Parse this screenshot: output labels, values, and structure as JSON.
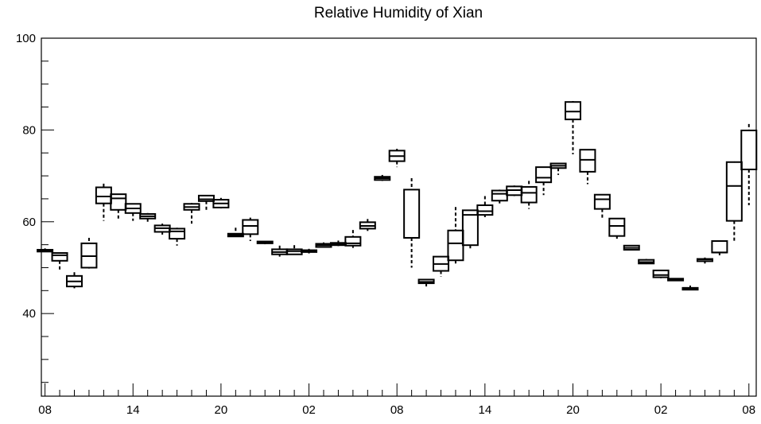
{
  "chart_data": {
    "type": "boxplot",
    "title": "Relative Humidity of Xian",
    "xlabel": "",
    "ylabel": "",
    "ylim": [
      22,
      100
    ],
    "xlim": [
      -0.25,
      48.5
    ],
    "y_ticks": [
      40,
      60,
      80,
      100
    ],
    "x_ticks": [
      {
        "x": 0,
        "label": "08"
      },
      {
        "x": 6,
        "label": "14"
      },
      {
        "x": 12,
        "label": "20"
      },
      {
        "x": 18,
        "label": "02"
      },
      {
        "x": 24,
        "label": "08"
      },
      {
        "x": 30,
        "label": "14"
      },
      {
        "x": 36,
        "label": "20"
      },
      {
        "x": 42,
        "label": "02"
      },
      {
        "x": 48,
        "label": "08"
      }
    ],
    "grid": false,
    "series": [
      {
        "values": [
          {
            "x": 0,
            "min": 53.4,
            "q1": 53.5,
            "median": 53.7,
            "q3": 53.9,
            "max": 54.2
          },
          {
            "x": 1,
            "min": 49.6,
            "q1": 51.5,
            "median": 52.7,
            "q3": 53.2,
            "max": 53.3
          },
          {
            "x": 2,
            "min": 45.5,
            "q1": 45.9,
            "median": 47.0,
            "q3": 48.2,
            "max": 49.0
          },
          {
            "x": 3,
            "min": 49.8,
            "q1": 50.0,
            "median": 52.5,
            "q3": 55.3,
            "max": 56.5
          },
          {
            "x": 4,
            "min": 60.2,
            "q1": 64.0,
            "median": 65.5,
            "q3": 67.5,
            "max": 68.3
          },
          {
            "x": 5,
            "min": 60.7,
            "q1": 62.6,
            "median": 65.1,
            "q3": 66.0,
            "max": 66.1
          },
          {
            "x": 6,
            "min": 60.2,
            "q1": 61.9,
            "median": 62.9,
            "q3": 63.9,
            "max": 64.0
          },
          {
            "x": 7,
            "min": 59.8,
            "q1": 60.7,
            "median": 61.2,
            "q3": 61.7,
            "max": 61.9
          },
          {
            "x": 8,
            "min": 57.2,
            "q1": 57.8,
            "median": 58.6,
            "q3": 59.2,
            "max": 59.6
          },
          {
            "x": 9,
            "min": 54.8,
            "q1": 56.3,
            "median": 57.9,
            "q3": 58.5,
            "max": 58.7
          },
          {
            "x": 10,
            "min": 59.6,
            "q1": 62.6,
            "median": 63.2,
            "q3": 63.9,
            "max": 64.1
          },
          {
            "x": 11,
            "min": 62.5,
            "q1": 64.5,
            "median": 64.9,
            "q3": 65.7,
            "max": 65.8
          },
          {
            "x": 12,
            "min": 62.9,
            "q1": 63.1,
            "median": 64.0,
            "q3": 64.8,
            "max": 65.2
          },
          {
            "x": 13,
            "min": 56.7,
            "q1": 56.8,
            "median": 57.1,
            "q3": 57.4,
            "max": 58.7
          },
          {
            "x": 14,
            "min": 55.8,
            "q1": 57.3,
            "median": 59.1,
            "q3": 60.4,
            "max": 60.9
          },
          {
            "x": 15,
            "min": 55.1,
            "q1": 55.3,
            "median": 55.5,
            "q3": 55.7,
            "max": 55.8
          },
          {
            "x": 16,
            "min": 52.4,
            "q1": 52.9,
            "median": 53.4,
            "q3": 54.0,
            "max": 54.8
          },
          {
            "x": 17,
            "min": 52.8,
            "q1": 52.9,
            "median": 53.6,
            "q3": 54.0,
            "max": 54.9
          },
          {
            "x": 18,
            "min": 53.1,
            "q1": 53.4,
            "median": 53.6,
            "q3": 53.8,
            "max": 54.1
          },
          {
            "x": 19,
            "min": 54.4,
            "q1": 54.5,
            "median": 54.9,
            "q3": 55.2,
            "max": 55.5
          },
          {
            "x": 20,
            "min": 54.7,
            "q1": 54.9,
            "median": 55.2,
            "q3": 55.4,
            "max": 55.9
          },
          {
            "x": 21,
            "min": 54.3,
            "q1": 54.8,
            "median": 55.3,
            "q3": 56.7,
            "max": 58.2
          },
          {
            "x": 22,
            "min": 58.0,
            "q1": 58.5,
            "median": 59.1,
            "q3": 59.9,
            "max": 60.6
          },
          {
            "x": 23,
            "min": 68.9,
            "q1": 69.1,
            "median": 69.5,
            "q3": 69.8,
            "max": 70.2
          },
          {
            "x": 24,
            "min": 71.9,
            "q1": 73.2,
            "median": 74.3,
            "q3": 75.5,
            "max": 75.9
          },
          {
            "x": 25,
            "min": 50.0,
            "q1": 56.5,
            "median": 56.5,
            "q3": 67.0,
            "max": 69.5
          },
          {
            "x": 26,
            "min": 45.5,
            "q1": 46.6,
            "median": 46.9,
            "q3": 47.4,
            "max": 47.5
          },
          {
            "x": 27,
            "min": 48.0,
            "q1": 49.3,
            "median": 50.8,
            "q3": 52.4,
            "max": 52.5
          },
          {
            "x": 28,
            "min": 50.5,
            "q1": 51.6,
            "median": 55.3,
            "q3": 58.1,
            "max": 63.2
          },
          {
            "x": 29,
            "min": 54.1,
            "q1": 54.9,
            "median": 61.5,
            "q3": 62.5,
            "max": 62.6
          },
          {
            "x": 30,
            "min": 61.0,
            "q1": 61.5,
            "median": 62.3,
            "q3": 63.6,
            "max": 65.6
          },
          {
            "x": 31,
            "min": 64.0,
            "q1": 64.6,
            "median": 66.1,
            "q3": 66.8,
            "max": 67.0
          },
          {
            "x": 32,
            "min": 65.6,
            "q1": 65.8,
            "median": 66.9,
            "q3": 67.7,
            "max": 67.9
          },
          {
            "x": 33,
            "min": 62.8,
            "q1": 64.2,
            "median": 66.3,
            "q3": 67.6,
            "max": 68.9
          },
          {
            "x": 34,
            "min": 65.8,
            "q1": 68.6,
            "median": 69.6,
            "q3": 71.9,
            "max": 72.0
          },
          {
            "x": 35,
            "min": 70.2,
            "q1": 71.7,
            "median": 72.2,
            "q3": 72.7,
            "max": 72.8
          },
          {
            "x": 36,
            "min": 74.7,
            "q1": 82.3,
            "median": 84.0,
            "q3": 86.1,
            "max": 86.3
          },
          {
            "x": 37,
            "min": 68.2,
            "q1": 70.9,
            "median": 73.5,
            "q3": 75.7,
            "max": 75.8
          },
          {
            "x": 38,
            "min": 60.5,
            "q1": 62.8,
            "median": 64.9,
            "q3": 65.9,
            "max": 66.0
          },
          {
            "x": 39,
            "min": 56.3,
            "q1": 56.9,
            "median": 59.1,
            "q3": 60.7,
            "max": 60.8
          },
          {
            "x": 40,
            "min": 53.8,
            "q1": 53.9,
            "median": 54.3,
            "q3": 54.8,
            "max": 54.9
          },
          {
            "x": 41,
            "min": 50.9,
            "q1": 50.9,
            "median": 51.2,
            "q3": 51.7,
            "max": 51.9
          },
          {
            "x": 42,
            "min": 47.7,
            "q1": 47.9,
            "median": 48.4,
            "q3": 49.4,
            "max": 49.5
          },
          {
            "x": 43,
            "min": 47.1,
            "q1": 47.2,
            "median": 47.5,
            "q3": 47.6,
            "max": 47.7
          },
          {
            "x": 44,
            "min": 45.1,
            "q1": 45.2,
            "median": 45.4,
            "q3": 45.6,
            "max": 46.1
          },
          {
            "x": 45,
            "min": 50.9,
            "q1": 51.4,
            "median": 51.8,
            "q3": 51.9,
            "max": 52.2
          },
          {
            "x": 46,
            "min": 52.7,
            "q1": 53.3,
            "median": 53.3,
            "q3": 55.8,
            "max": 55.8
          },
          {
            "x": 47,
            "min": 55.8,
            "q1": 60.2,
            "median": 67.8,
            "q3": 73.0,
            "max": 73.0
          },
          {
            "x": 48,
            "min": 63.6,
            "q1": 71.4,
            "median": 71.4,
            "q3": 79.9,
            "max": 81.3
          }
        ]
      }
    ]
  }
}
